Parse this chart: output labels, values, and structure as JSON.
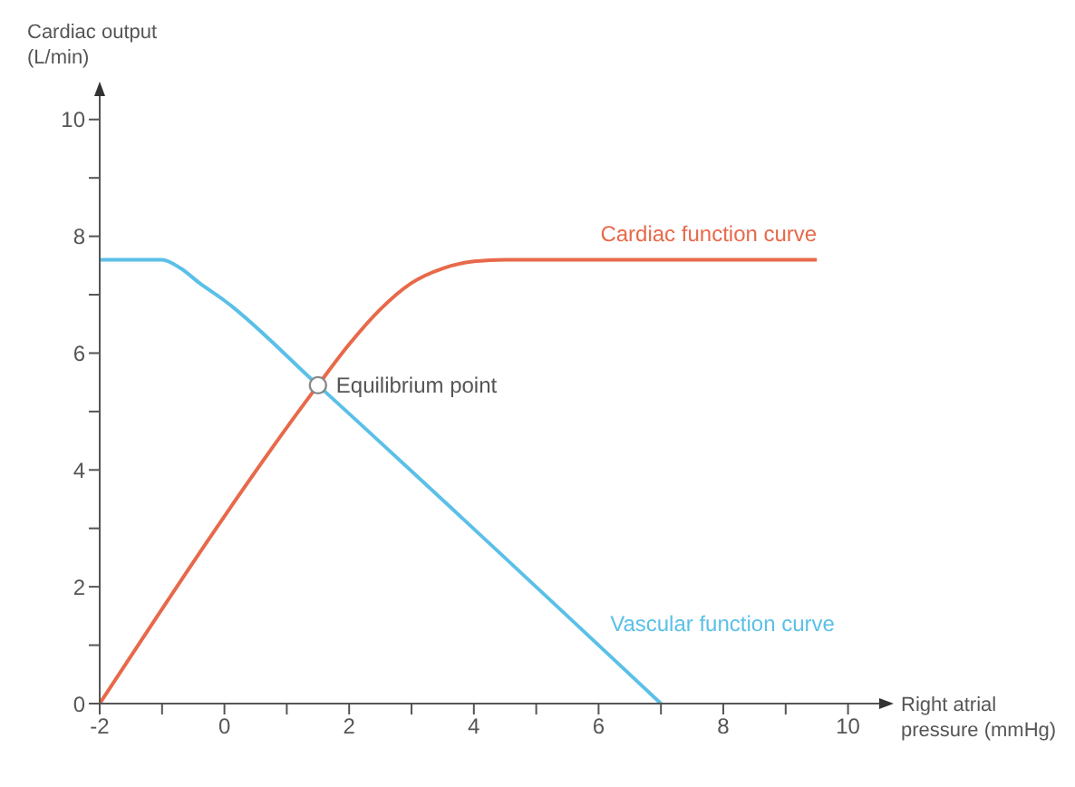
{
  "chart_data": {
    "type": "line",
    "xlabel": "Right atrial\npressure (mmHg)",
    "ylabel": "Cardiac output\n(L/min)",
    "xlim": [
      -2,
      10.5
    ],
    "ylim": [
      0,
      10.4
    ],
    "xticks": [
      -2,
      {
        "value": -1,
        "label": null
      },
      0,
      {
        "value": 1,
        "label": null
      },
      2,
      {
        "value": 3,
        "label": null
      },
      4,
      {
        "value": 5,
        "label": null
      },
      6,
      {
        "value": 7,
        "label": null
      },
      8,
      {
        "value": 9,
        "label": null
      },
      10
    ],
    "yticks": [
      0,
      {
        "value": 1,
        "label": null
      },
      2,
      {
        "value": 3,
        "label": null
      },
      4,
      {
        "value": 5,
        "label": null
      },
      6,
      {
        "value": 7,
        "label": null
      },
      8,
      {
        "value": 9,
        "label": null
      },
      10
    ],
    "grid": false,
    "legend": false,
    "marker": "none",
    "line_style": "solid",
    "series": [
      {
        "name": "Cardiac function curve",
        "color": "#e8694a",
        "x": [
          -2,
          1.5,
          2,
          2.5,
          3,
          3.5,
          4,
          4.5,
          9.5
        ],
        "values": [
          0,
          5.45,
          6.15,
          6.75,
          7.2,
          7.45,
          7.57,
          7.6,
          7.6
        ]
      },
      {
        "name": "Vascular function curve",
        "color": "#5bc0e8",
        "x": [
          -2,
          -1,
          -0.7,
          -0.4,
          0,
          1.5,
          7
        ],
        "values": [
          7.6,
          7.6,
          7.45,
          7.2,
          6.9,
          5.45,
          0
        ]
      },
      {
        "type": "scatter",
        "color": "#888888",
        "marker": "circle",
        "x": [
          1.5
        ],
        "values": [
          5.45
        ]
      }
    ],
    "annotations": [
      {
        "text": "Equilibrium point",
        "x": 1.5,
        "y": 5.45
      }
    ]
  }
}
